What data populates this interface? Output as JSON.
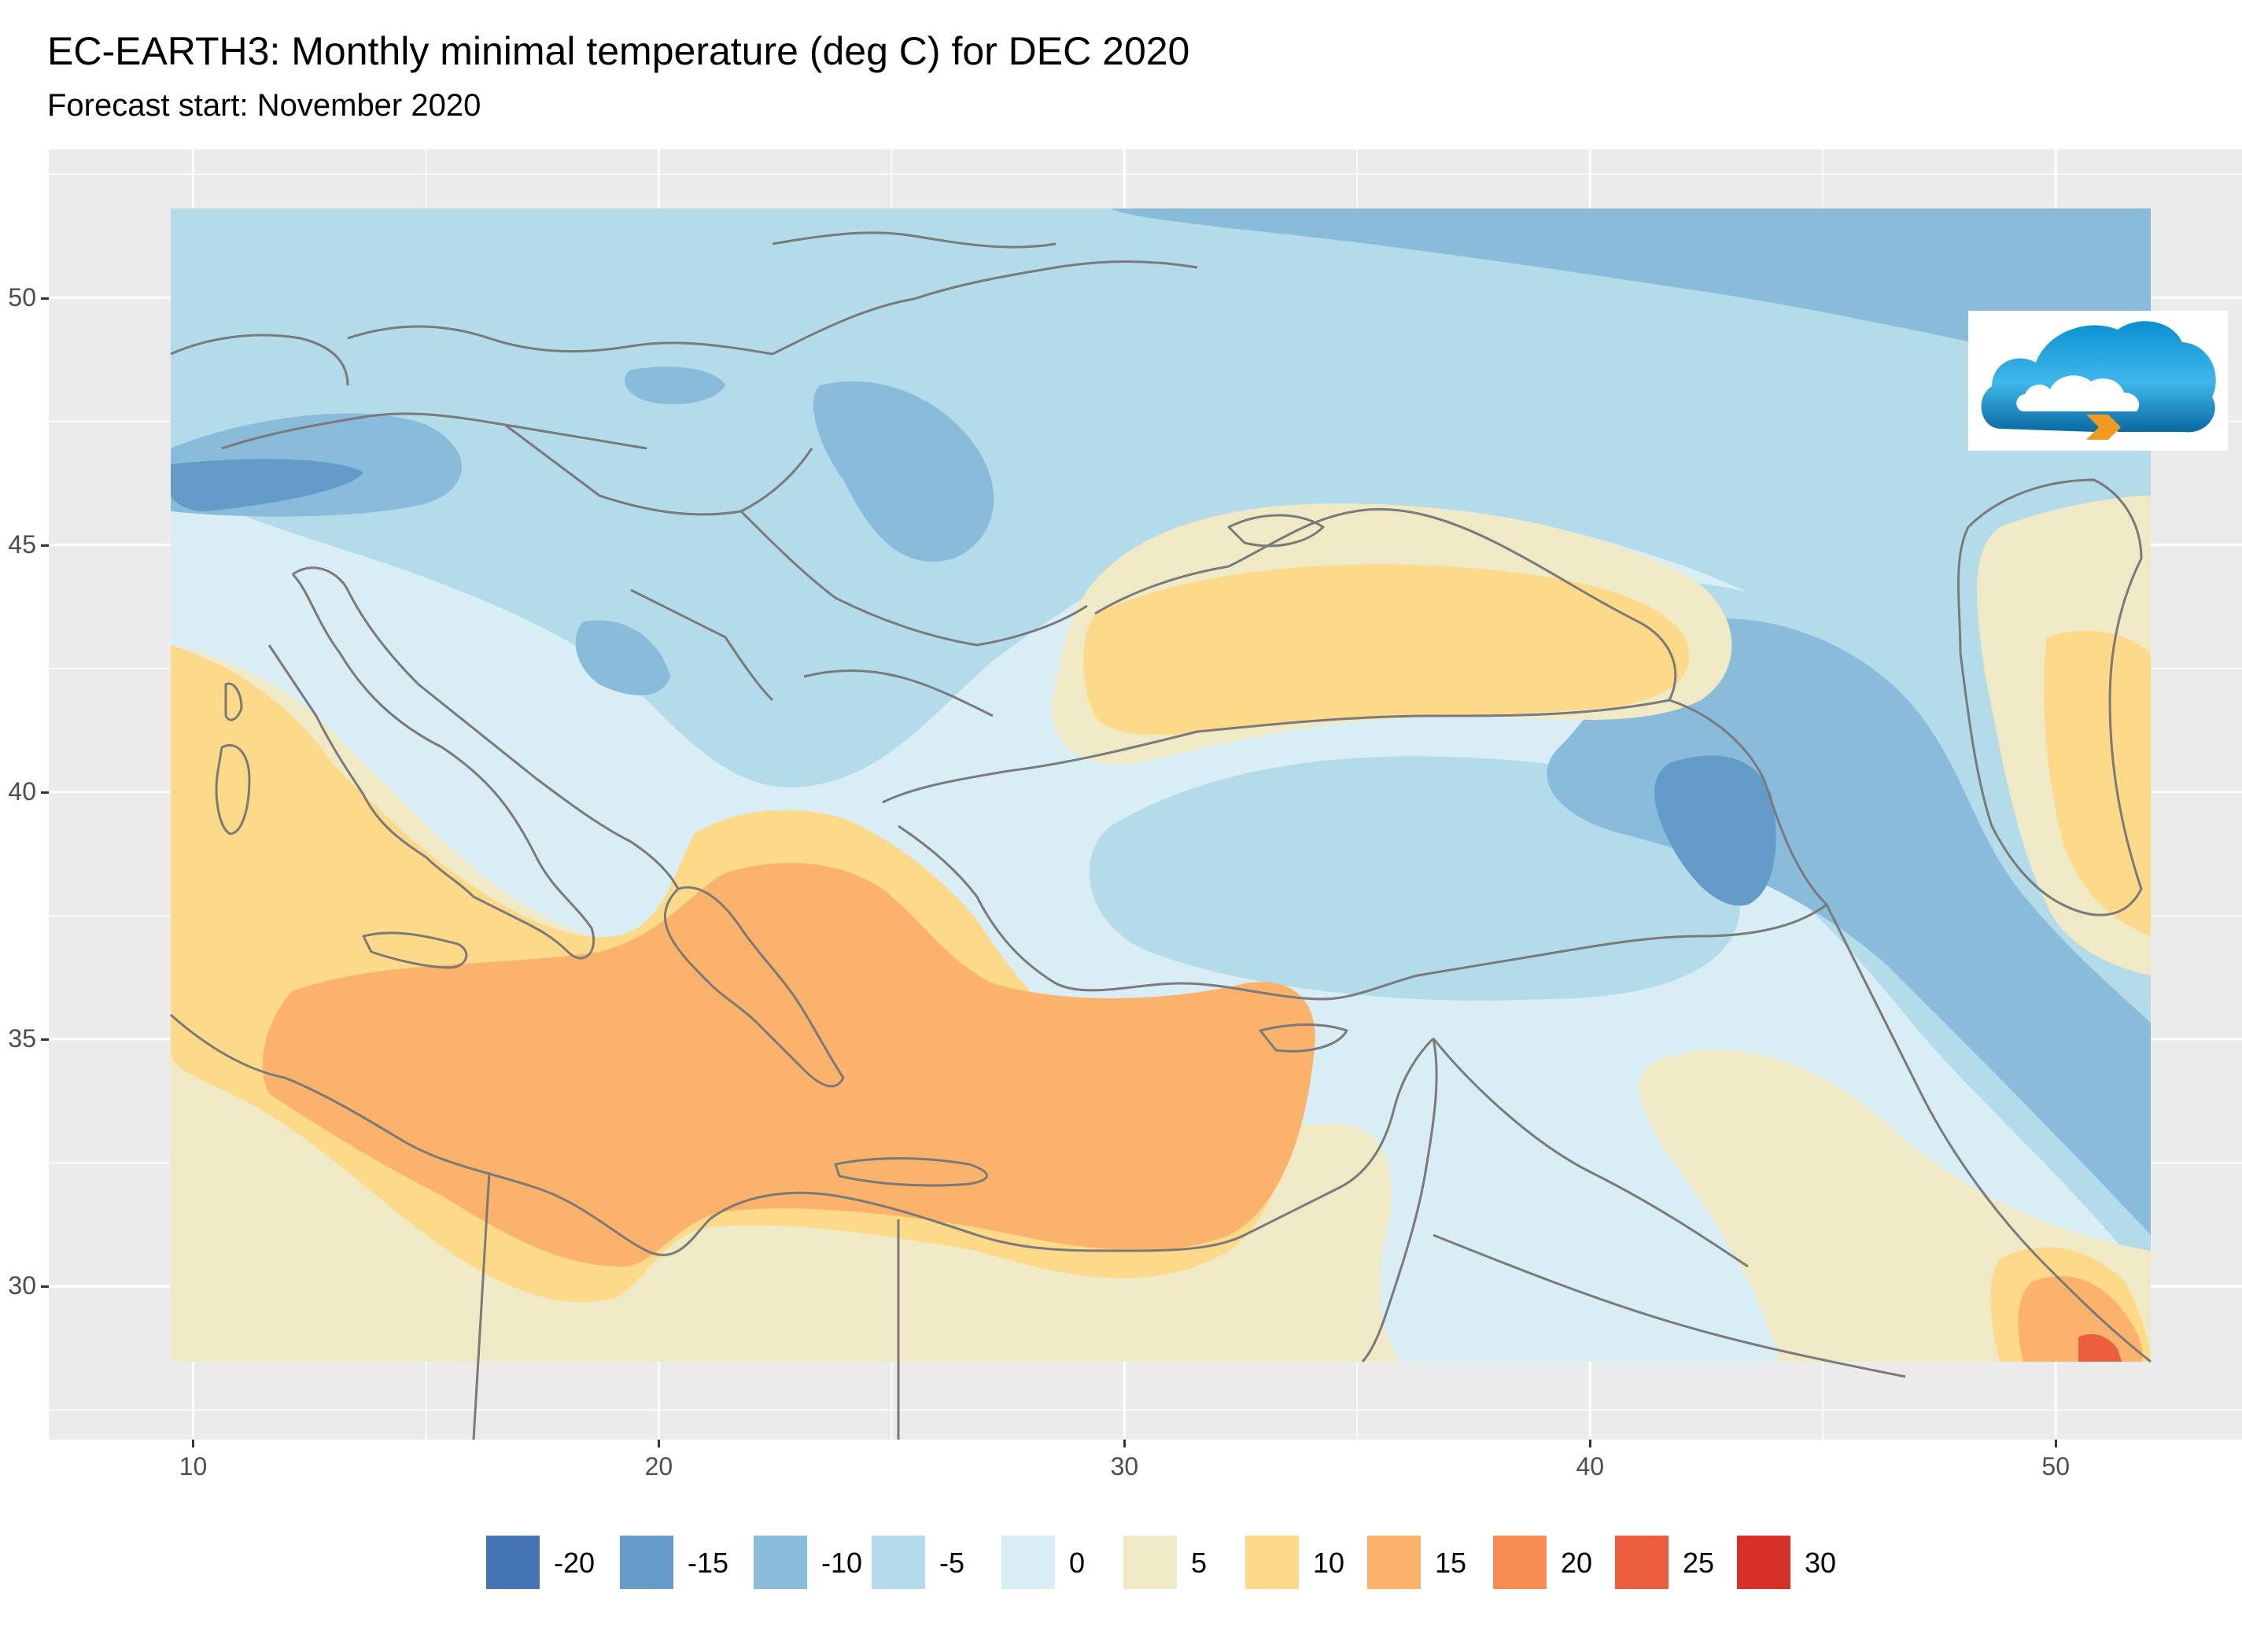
{
  "title": "EC-EARTH3: Monthly minimal temperature (deg C) for DEC 2020",
  "subtitle": "Forecast start: November 2020",
  "map": {
    "x_ticks": [
      {
        "value": 10,
        "label": "10"
      },
      {
        "value": 20,
        "label": "20"
      },
      {
        "value": 30,
        "label": "30"
      },
      {
        "value": 40,
        "label": "40"
      },
      {
        "value": 50,
        "label": "50"
      }
    ],
    "y_ticks": [
      {
        "value": 50,
        "label": "50"
      },
      {
        "value": 45,
        "label": "45"
      },
      {
        "value": 40,
        "label": "40"
      },
      {
        "value": 35,
        "label": "35"
      },
      {
        "value": 30,
        "label": "30"
      }
    ],
    "lon_range": [
      6.9,
      54.0
    ],
    "lat_range": [
      26.9,
      53.0
    ],
    "data_extent": {
      "lon": [
        9.5,
        51.6
      ],
      "lat": [
        28.5,
        52.8
      ]
    },
    "background_color": "#ebebeb",
    "grid_color": "#ffffff",
    "border_color": "#7a7a7a"
  },
  "legend": {
    "items": [
      {
        "label": "-20",
        "color": "#4575b4"
      },
      {
        "label": "-15",
        "color": "#649bc9"
      },
      {
        "label": "-10",
        "color": "#89bcdb"
      },
      {
        "label": "-5",
        "color": "#b3dbea"
      },
      {
        "label": "0",
        "color": "#d8edf4"
      },
      {
        "label": "5",
        "color": "#efe9c6"
      },
      {
        "label": "10",
        "color": "#fdd98a"
      },
      {
        "label": "15",
        "color": "#fbb26a"
      },
      {
        "label": "20",
        "color": "#f88d52"
      },
      {
        "label": "25",
        "color": "#ea5e3d"
      },
      {
        "label": "30",
        "color": "#d73027"
      }
    ]
  },
  "logo": {
    "icon": "cloud-logo-icon"
  }
}
